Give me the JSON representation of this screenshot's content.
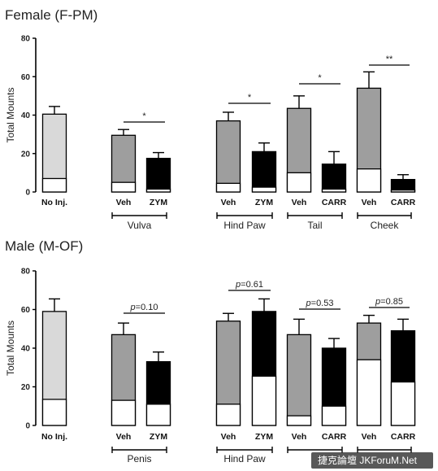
{
  "chart_data": [
    {
      "type": "bar",
      "title": "Female (F-PM)",
      "ylabel": "Total Mounts",
      "ylim": [
        0,
        80
      ],
      "yticks": [
        0,
        20,
        40,
        60,
        80
      ],
      "categories": [
        "No Inj.",
        "Veh",
        "ZYM",
        "Veh",
        "ZYM",
        "Veh",
        "CARR",
        "Veh",
        "CARR"
      ],
      "groups": [
        {
          "label": "Vulva",
          "bars": [
            1,
            2
          ]
        },
        {
          "label": "Hind Paw",
          "bars": [
            3,
            4
          ]
        },
        {
          "label": "Tail",
          "bars": [
            5,
            6
          ]
        },
        {
          "label": "Cheek",
          "bars": [
            7,
            8
          ]
        }
      ],
      "series": [
        {
          "name": "",
          "values": [
            7,
            5,
            1.5,
            4.5,
            2.5,
            10,
            1.5,
            12,
            1
          ]
        },
        {
          "name": "",
          "values": [
            40.5,
            29.5,
            17.5,
            37,
            21,
            43.5,
            14.5,
            54,
            6.5
          ]
        }
      ],
      "errors": [
        4,
        3,
        3,
        4.5,
        4.5,
        6.5,
        6.5,
        8.5,
        2.5
      ],
      "bar_colors": [
        "#d9d9d9",
        "#9e9e9e",
        "#000000",
        "#9e9e9e",
        "#000000",
        "#9e9e9e",
        "#000000",
        "#9e9e9e",
        "#000000"
      ],
      "significance": [
        {
          "bars": [
            1,
            2
          ],
          "label": "*"
        },
        {
          "bars": [
            3,
            4
          ],
          "label": "*"
        },
        {
          "bars": [
            5,
            6
          ],
          "label": "*"
        },
        {
          "bars": [
            7,
            8
          ],
          "label": "**"
        }
      ]
    },
    {
      "type": "bar",
      "title": "Male (M-OF)",
      "ylabel": "Total Mounts",
      "ylim": [
        0,
        80
      ],
      "yticks": [
        0,
        20,
        40,
        60,
        80
      ],
      "categories": [
        "No Inj.",
        "Veh",
        "ZYM",
        "Veh",
        "ZYM",
        "Veh",
        "CARR",
        "Veh",
        "CARR"
      ],
      "groups": [
        {
          "label": "Penis",
          "bars": [
            1,
            2
          ]
        },
        {
          "label": "Hind Paw",
          "bars": [
            3,
            4
          ]
        },
        {
          "label": "",
          "bars": [
            5,
            6
          ]
        },
        {
          "label": "",
          "bars": [
            7,
            8
          ]
        }
      ],
      "series": [
        {
          "name": "",
          "values": [
            13.5,
            13,
            11,
            11,
            25.5,
            5,
            10,
            34,
            22.5
          ]
        },
        {
          "name": "",
          "values": [
            59,
            47,
            33,
            54,
            59,
            47,
            40,
            53,
            49
          ]
        }
      ],
      "errors": [
        6.5,
        6,
        5,
        4,
        6.5,
        8,
        5,
        4,
        6
      ],
      "bar_colors": [
        "#d9d9d9",
        "#9e9e9e",
        "#000000",
        "#9e9e9e",
        "#000000",
        "#9e9e9e",
        "#000000",
        "#9e9e9e",
        "#000000"
      ],
      "significance": [
        {
          "bars": [
            1,
            2
          ],
          "label": "p=0.10"
        },
        {
          "bars": [
            3,
            4
          ],
          "label": "p=0.61"
        },
        {
          "bars": [
            5,
            6
          ],
          "label": "p=0.53"
        },
        {
          "bars": [
            7,
            8
          ],
          "label": "p=0.85"
        }
      ]
    }
  ],
  "watermark": "捷克論壇 JKForuM.Net"
}
